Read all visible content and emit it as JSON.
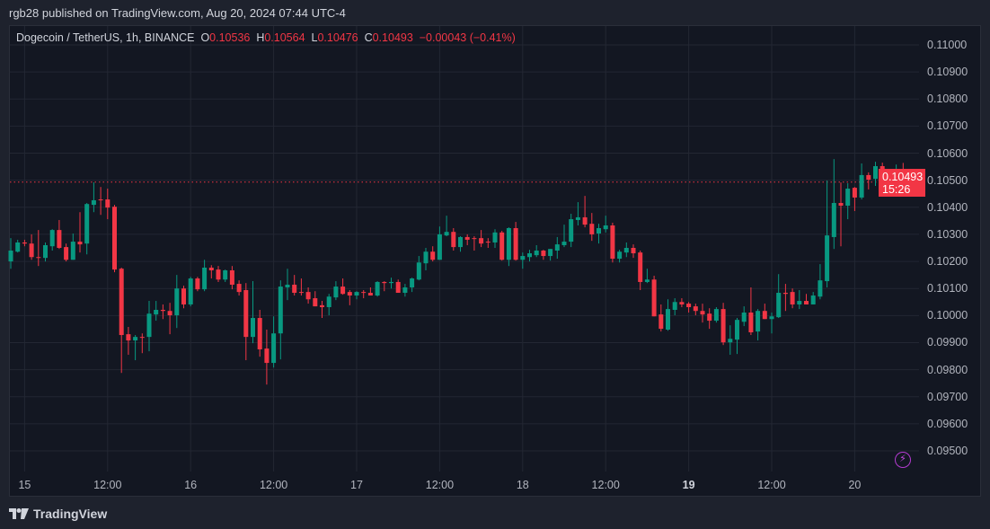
{
  "header": {
    "published": "rgb28 published on TradingView.com, Aug 20, 2024 07:44 UTC-4"
  },
  "legend": {
    "symbol": "Dogecoin / TetherUS, 1h, BINANCE",
    "o_label": "O",
    "o": "0.10536",
    "h_label": "H",
    "h": "0.10564",
    "l_label": "L",
    "l": "0.10476",
    "c_label": "C",
    "c": "0.10493",
    "change": "−0.00043 (−0.41%)"
  },
  "price_label": {
    "price": "0.10493",
    "countdown": "15:26"
  },
  "footer": {
    "brand": "TradingView"
  },
  "icons": {
    "logo": "tradingview-logo-icon",
    "bolt": "lightning-icon"
  },
  "colors": {
    "up": "#089981",
    "down": "#f23645",
    "background": "#131722",
    "grid": "#232733",
    "last_price_line": "#f23645"
  },
  "chart_data": {
    "type": "candlestick",
    "symbol": "Dogecoin / TetherUS",
    "interval": "1h",
    "first_candle_time": "2024-08-14 22:00",
    "ylim": [
      0.0945,
      0.1115
    ],
    "y_ticks": [
      "0.11000",
      "0.10900",
      "0.10800",
      "0.10700",
      "0.10600",
      "0.10500",
      "0.10400",
      "0.10300",
      "0.10200",
      "0.10100",
      "0.10000",
      "0.09900",
      "0.09800",
      "0.09700",
      "0.09600",
      "0.09500"
    ],
    "x_ticks": [
      {
        "label": "15",
        "time": "2024-08-15 00:00",
        "bold": false
      },
      {
        "label": "12:00",
        "time": "2024-08-15 12:00",
        "bold": false
      },
      {
        "label": "16",
        "time": "2024-08-16 00:00",
        "bold": false
      },
      {
        "label": "12:00",
        "time": "2024-08-16 12:00",
        "bold": false
      },
      {
        "label": "17",
        "time": "2024-08-17 00:00",
        "bold": false
      },
      {
        "label": "12:00",
        "time": "2024-08-17 12:00",
        "bold": false
      },
      {
        "label": "18",
        "time": "2024-08-18 00:00",
        "bold": false
      },
      {
        "label": "12:00",
        "time": "2024-08-18 12:00",
        "bold": false
      },
      {
        "label": "19",
        "time": "2024-08-19 00:00",
        "bold": true
      },
      {
        "label": "12:00",
        "time": "2024-08-19 12:00",
        "bold": false
      },
      {
        "label": "20",
        "time": "2024-08-20 00:00",
        "bold": false
      }
    ],
    "grid": true,
    "last_price": 0.10493,
    "ohlc": [
      [
        0.102,
        0.10286,
        0.10173,
        0.1024
      ],
      [
        0.10236,
        0.1028,
        0.10233,
        0.1027
      ],
      [
        0.1027,
        0.1028,
        0.10256,
        0.10266
      ],
      [
        0.10266,
        0.103,
        0.10206,
        0.10216
      ],
      [
        0.10216,
        0.10316,
        0.10183,
        0.10213
      ],
      [
        0.10213,
        0.1027,
        0.102,
        0.1026
      ],
      [
        0.10256,
        0.10319,
        0.1024,
        0.10316
      ],
      [
        0.10316,
        0.10353,
        0.10246,
        0.1025
      ],
      [
        0.10253,
        0.10266,
        0.102,
        0.10206
      ],
      [
        0.10206,
        0.10303,
        0.10206,
        0.10273
      ],
      [
        0.10273,
        0.10382,
        0.10233,
        0.10263
      ],
      [
        0.10266,
        0.10416,
        0.10226,
        0.10412
      ],
      [
        0.10409,
        0.10492,
        0.10382,
        0.10426
      ],
      [
        0.10429,
        0.10475,
        0.10372,
        0.10426
      ],
      [
        0.10429,
        0.10469,
        0.10356,
        0.10399
      ],
      [
        0.10402,
        0.10409,
        0.1016,
        0.1017
      ],
      [
        0.10173,
        0.10177,
        0.09788,
        0.09928
      ],
      [
        0.09931,
        0.09958,
        0.09855,
        0.09908
      ],
      [
        0.09908,
        0.09928,
        0.09835,
        0.09921
      ],
      [
        0.09921,
        0.09934,
        0.09861,
        0.09918
      ],
      [
        0.09921,
        0.10054,
        0.09868,
        0.10007
      ],
      [
        0.10004,
        0.10054,
        0.09981,
        0.10021
      ],
      [
        0.10021,
        0.10041,
        0.09987,
        0.10017
      ],
      [
        0.10017,
        0.10047,
        0.09931,
        0.10001
      ],
      [
        0.10001,
        0.1015,
        0.09954,
        0.101
      ],
      [
        0.101,
        0.1011,
        0.10027,
        0.10041
      ],
      [
        0.10041,
        0.10143,
        0.10034,
        0.10137
      ],
      [
        0.10137,
        0.10143,
        0.1009,
        0.10097
      ],
      [
        0.10097,
        0.10206,
        0.1009,
        0.10177
      ],
      [
        0.10177,
        0.10186,
        0.10137,
        0.10167
      ],
      [
        0.1017,
        0.10183,
        0.10124,
        0.10133
      ],
      [
        0.10133,
        0.1017,
        0.10124,
        0.10167
      ],
      [
        0.10167,
        0.10183,
        0.10097,
        0.10114
      ],
      [
        0.10117,
        0.1013,
        0.10074,
        0.10087
      ],
      [
        0.10094,
        0.1012,
        0.09835,
        0.09921
      ],
      [
        0.09921,
        0.10127,
        0.09898,
        0.09991
      ],
      [
        0.09991,
        0.10021,
        0.09848,
        0.09875
      ],
      [
        0.09878,
        0.09948,
        0.09745,
        0.09825
      ],
      [
        0.09825,
        0.09997,
        0.09808,
        0.09934
      ],
      [
        0.09934,
        0.1013,
        0.09838,
        0.10107
      ],
      [
        0.10104,
        0.10173,
        0.10057,
        0.10114
      ],
      [
        0.10114,
        0.1015,
        0.10074,
        0.10084
      ],
      [
        0.10087,
        0.10137,
        0.10074,
        0.10084
      ],
      [
        0.10087,
        0.10104,
        0.10044,
        0.1006
      ],
      [
        0.10064,
        0.1009,
        0.10034,
        0.10034
      ],
      [
        0.10038,
        0.10054,
        0.09991,
        0.10031
      ],
      [
        0.10031,
        0.1008,
        0.10001,
        0.1007
      ],
      [
        0.10067,
        0.10127,
        0.10057,
        0.10107
      ],
      [
        0.10107,
        0.10137,
        0.10077,
        0.1008
      ],
      [
        0.10087,
        0.10094,
        0.10038,
        0.10074
      ],
      [
        0.10074,
        0.1009,
        0.1006,
        0.10087
      ],
      [
        0.10087,
        0.10094,
        0.10064,
        0.10084
      ],
      [
        0.10084,
        0.10104,
        0.10074,
        0.10074
      ],
      [
        0.10074,
        0.10127,
        0.1007,
        0.10124
      ],
      [
        0.10124,
        0.10127,
        0.1009,
        0.1012
      ],
      [
        0.1012,
        0.1014,
        0.101,
        0.10124
      ],
      [
        0.10124,
        0.10133,
        0.10084,
        0.10084
      ],
      [
        0.10084,
        0.10117,
        0.1007,
        0.10104
      ],
      [
        0.10104,
        0.1014,
        0.10087,
        0.10137
      ],
      [
        0.10133,
        0.1022,
        0.1013,
        0.10196
      ],
      [
        0.10193,
        0.1025,
        0.10167,
        0.10236
      ],
      [
        0.10236,
        0.10256,
        0.102,
        0.10206
      ],
      [
        0.10206,
        0.10329,
        0.10206,
        0.103
      ],
      [
        0.10296,
        0.10369,
        0.10293,
        0.10309
      ],
      [
        0.10309,
        0.10323,
        0.1024,
        0.10253
      ],
      [
        0.10253,
        0.10293,
        0.10236,
        0.1029
      ],
      [
        0.1029,
        0.103,
        0.1026,
        0.1028
      ],
      [
        0.10286,
        0.10293,
        0.1024,
        0.10283
      ],
      [
        0.10286,
        0.10316,
        0.10253,
        0.10266
      ],
      [
        0.10273,
        0.10286,
        0.1025,
        0.1027
      ],
      [
        0.1027,
        0.10319,
        0.1025,
        0.10307
      ],
      [
        0.10307,
        0.10313,
        0.10203,
        0.10206
      ],
      [
        0.10206,
        0.10326,
        0.10183,
        0.10323
      ],
      [
        0.10323,
        0.10346,
        0.10203,
        0.10206
      ],
      [
        0.10206,
        0.10233,
        0.10173,
        0.1022
      ],
      [
        0.10216,
        0.10243,
        0.102,
        0.1023
      ],
      [
        0.10223,
        0.1026,
        0.10216,
        0.1024
      ],
      [
        0.1024,
        0.10243,
        0.10206,
        0.1022
      ],
      [
        0.1022,
        0.10246,
        0.10203,
        0.10246
      ],
      [
        0.1024,
        0.1029,
        0.1021,
        0.10263
      ],
      [
        0.1026,
        0.10336,
        0.10253,
        0.10273
      ],
      [
        0.10273,
        0.10376,
        0.10253,
        0.10356
      ],
      [
        0.10353,
        0.10419,
        0.10333,
        0.10363
      ],
      [
        0.10363,
        0.10442,
        0.10326,
        0.10336
      ],
      [
        0.10339,
        0.10379,
        0.10276,
        0.103
      ],
      [
        0.10303,
        0.10339,
        0.10266,
        0.10323
      ],
      [
        0.10319,
        0.10369,
        0.10307,
        0.10333
      ],
      [
        0.10333,
        0.10343,
        0.10196,
        0.1021
      ],
      [
        0.1021,
        0.10243,
        0.10196,
        0.10236
      ],
      [
        0.10233,
        0.1027,
        0.10216,
        0.1025
      ],
      [
        0.1025,
        0.10263,
        0.10213,
        0.1023
      ],
      [
        0.10233,
        0.1024,
        0.10094,
        0.10124
      ],
      [
        0.10124,
        0.10173,
        0.1012,
        0.10133
      ],
      [
        0.10133,
        0.10147,
        0.09997,
        0.09997
      ],
      [
        0.10004,
        0.10041,
        0.09941,
        0.09951
      ],
      [
        0.09948,
        0.1006,
        0.09944,
        0.10024
      ],
      [
        0.10021,
        0.10064,
        0.10001,
        0.1005
      ],
      [
        0.1005,
        0.10064,
        0.10031,
        0.10041
      ],
      [
        0.10044,
        0.1005,
        0.10011,
        0.10031
      ],
      [
        0.10034,
        0.10044,
        0.10001,
        0.10017
      ],
      [
        0.10017,
        0.10044,
        0.09974,
        0.10004
      ],
      [
        0.10007,
        0.10027,
        0.09951,
        0.09981
      ],
      [
        0.09981,
        0.10031,
        0.09974,
        0.10024
      ],
      [
        0.10024,
        0.10047,
        0.09891,
        0.09901
      ],
      [
        0.09901,
        0.09964,
        0.09855,
        0.09914
      ],
      [
        0.09911,
        0.09991,
        0.09858,
        0.09984
      ],
      [
        0.09977,
        0.10034,
        0.09961,
        0.10011
      ],
      [
        0.10011,
        0.10104,
        0.09928,
        0.09938
      ],
      [
        0.09941,
        0.10024,
        0.09908,
        0.10017
      ],
      [
        0.10017,
        0.10044,
        0.09987,
        0.09987
      ],
      [
        0.09987,
        0.10011,
        0.09934,
        0.09997
      ],
      [
        0.09994,
        0.10153,
        0.09991,
        0.10084
      ],
      [
        0.10084,
        0.10117,
        0.10017,
        0.1008
      ],
      [
        0.10087,
        0.101,
        0.10027,
        0.10041
      ],
      [
        0.10041,
        0.10094,
        0.10024,
        0.10054
      ],
      [
        0.10054,
        0.1008,
        0.10041,
        0.10041
      ],
      [
        0.10041,
        0.10087,
        0.10041,
        0.10074
      ],
      [
        0.1007,
        0.1019,
        0.1006,
        0.1013
      ],
      [
        0.10127,
        0.10499,
        0.10104,
        0.10296
      ],
      [
        0.1029,
        0.10578,
        0.10246,
        0.10416
      ],
      [
        0.10416,
        0.10492,
        0.10256,
        0.10406
      ],
      [
        0.10406,
        0.10489,
        0.10356,
        0.10469
      ],
      [
        0.10472,
        0.10475,
        0.10386,
        0.10436
      ],
      [
        0.10436,
        0.10562,
        0.10429,
        0.10519
      ],
      [
        0.10519,
        0.10529,
        0.10466,
        0.10502
      ],
      [
        0.10505,
        0.10568,
        0.10479,
        0.10552
      ],
      [
        0.10552,
        0.10565,
        0.10452,
        0.10479
      ],
      [
        0.10479,
        0.10539,
        0.10475,
        0.10512
      ],
      [
        0.10509,
        0.10558,
        0.10502,
        0.10535
      ],
      [
        0.10536,
        0.10564,
        0.10476,
        0.10493
      ]
    ]
  }
}
